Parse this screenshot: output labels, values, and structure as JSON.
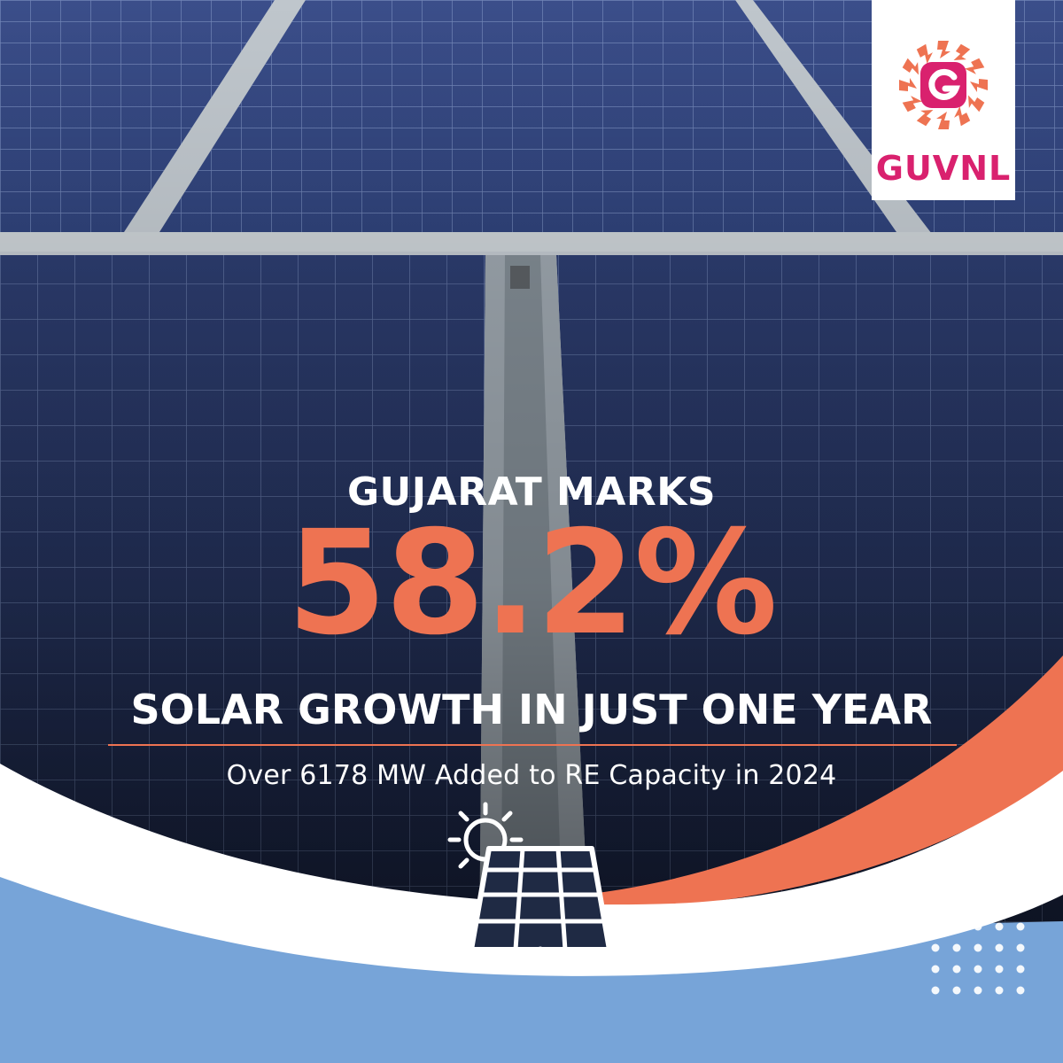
{
  "brand": {
    "name": "GUVNL",
    "monogram": "G",
    "colors": {
      "primary": "#d9216e",
      "accent": "#ee7352"
    }
  },
  "headline": {
    "line1": "GUJARAT MARKS",
    "figure": "58.2%",
    "line2": "SOLAR GROWTH IN JUST ONE YEAR"
  },
  "subline": "Over 6178 MW Added to RE Capacity in 2024",
  "icons": {
    "logo": "sun-rays-g-logo-icon",
    "solar": "solar-panel-sun-icon",
    "dots": "dot-grid-icon"
  },
  "colors": {
    "accent": "#ee7352",
    "wave_blue": "#77a4d8",
    "white": "#ffffff",
    "brand_pink": "#d9216e"
  }
}
